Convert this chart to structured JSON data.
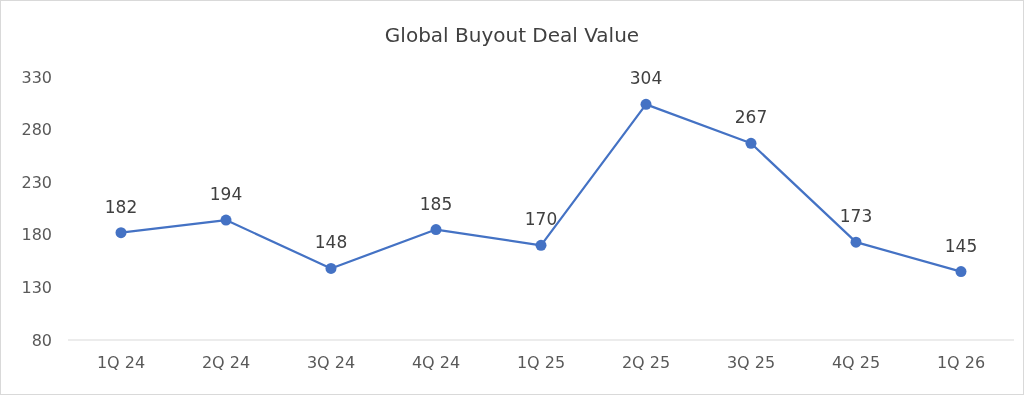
{
  "chart_data": {
    "type": "line",
    "title": "Global Buyout Deal Value",
    "categories": [
      "1Q 24",
      "2Q 24",
      "3Q 24",
      "4Q 24",
      "1Q 25",
      "2Q 25",
      "3Q 25",
      "4Q 25",
      "1Q 26"
    ],
    "series": [
      {
        "color": "#4472c4",
        "values": [
          182,
          194,
          148,
          185,
          170,
          304,
          267,
          173,
          145
        ]
      }
    ],
    "ylim": [
      80,
      330
    ],
    "yticks": [
      80,
      130,
      180,
      230,
      280,
      330
    ],
    "marker": "circle",
    "data_labels": true
  }
}
